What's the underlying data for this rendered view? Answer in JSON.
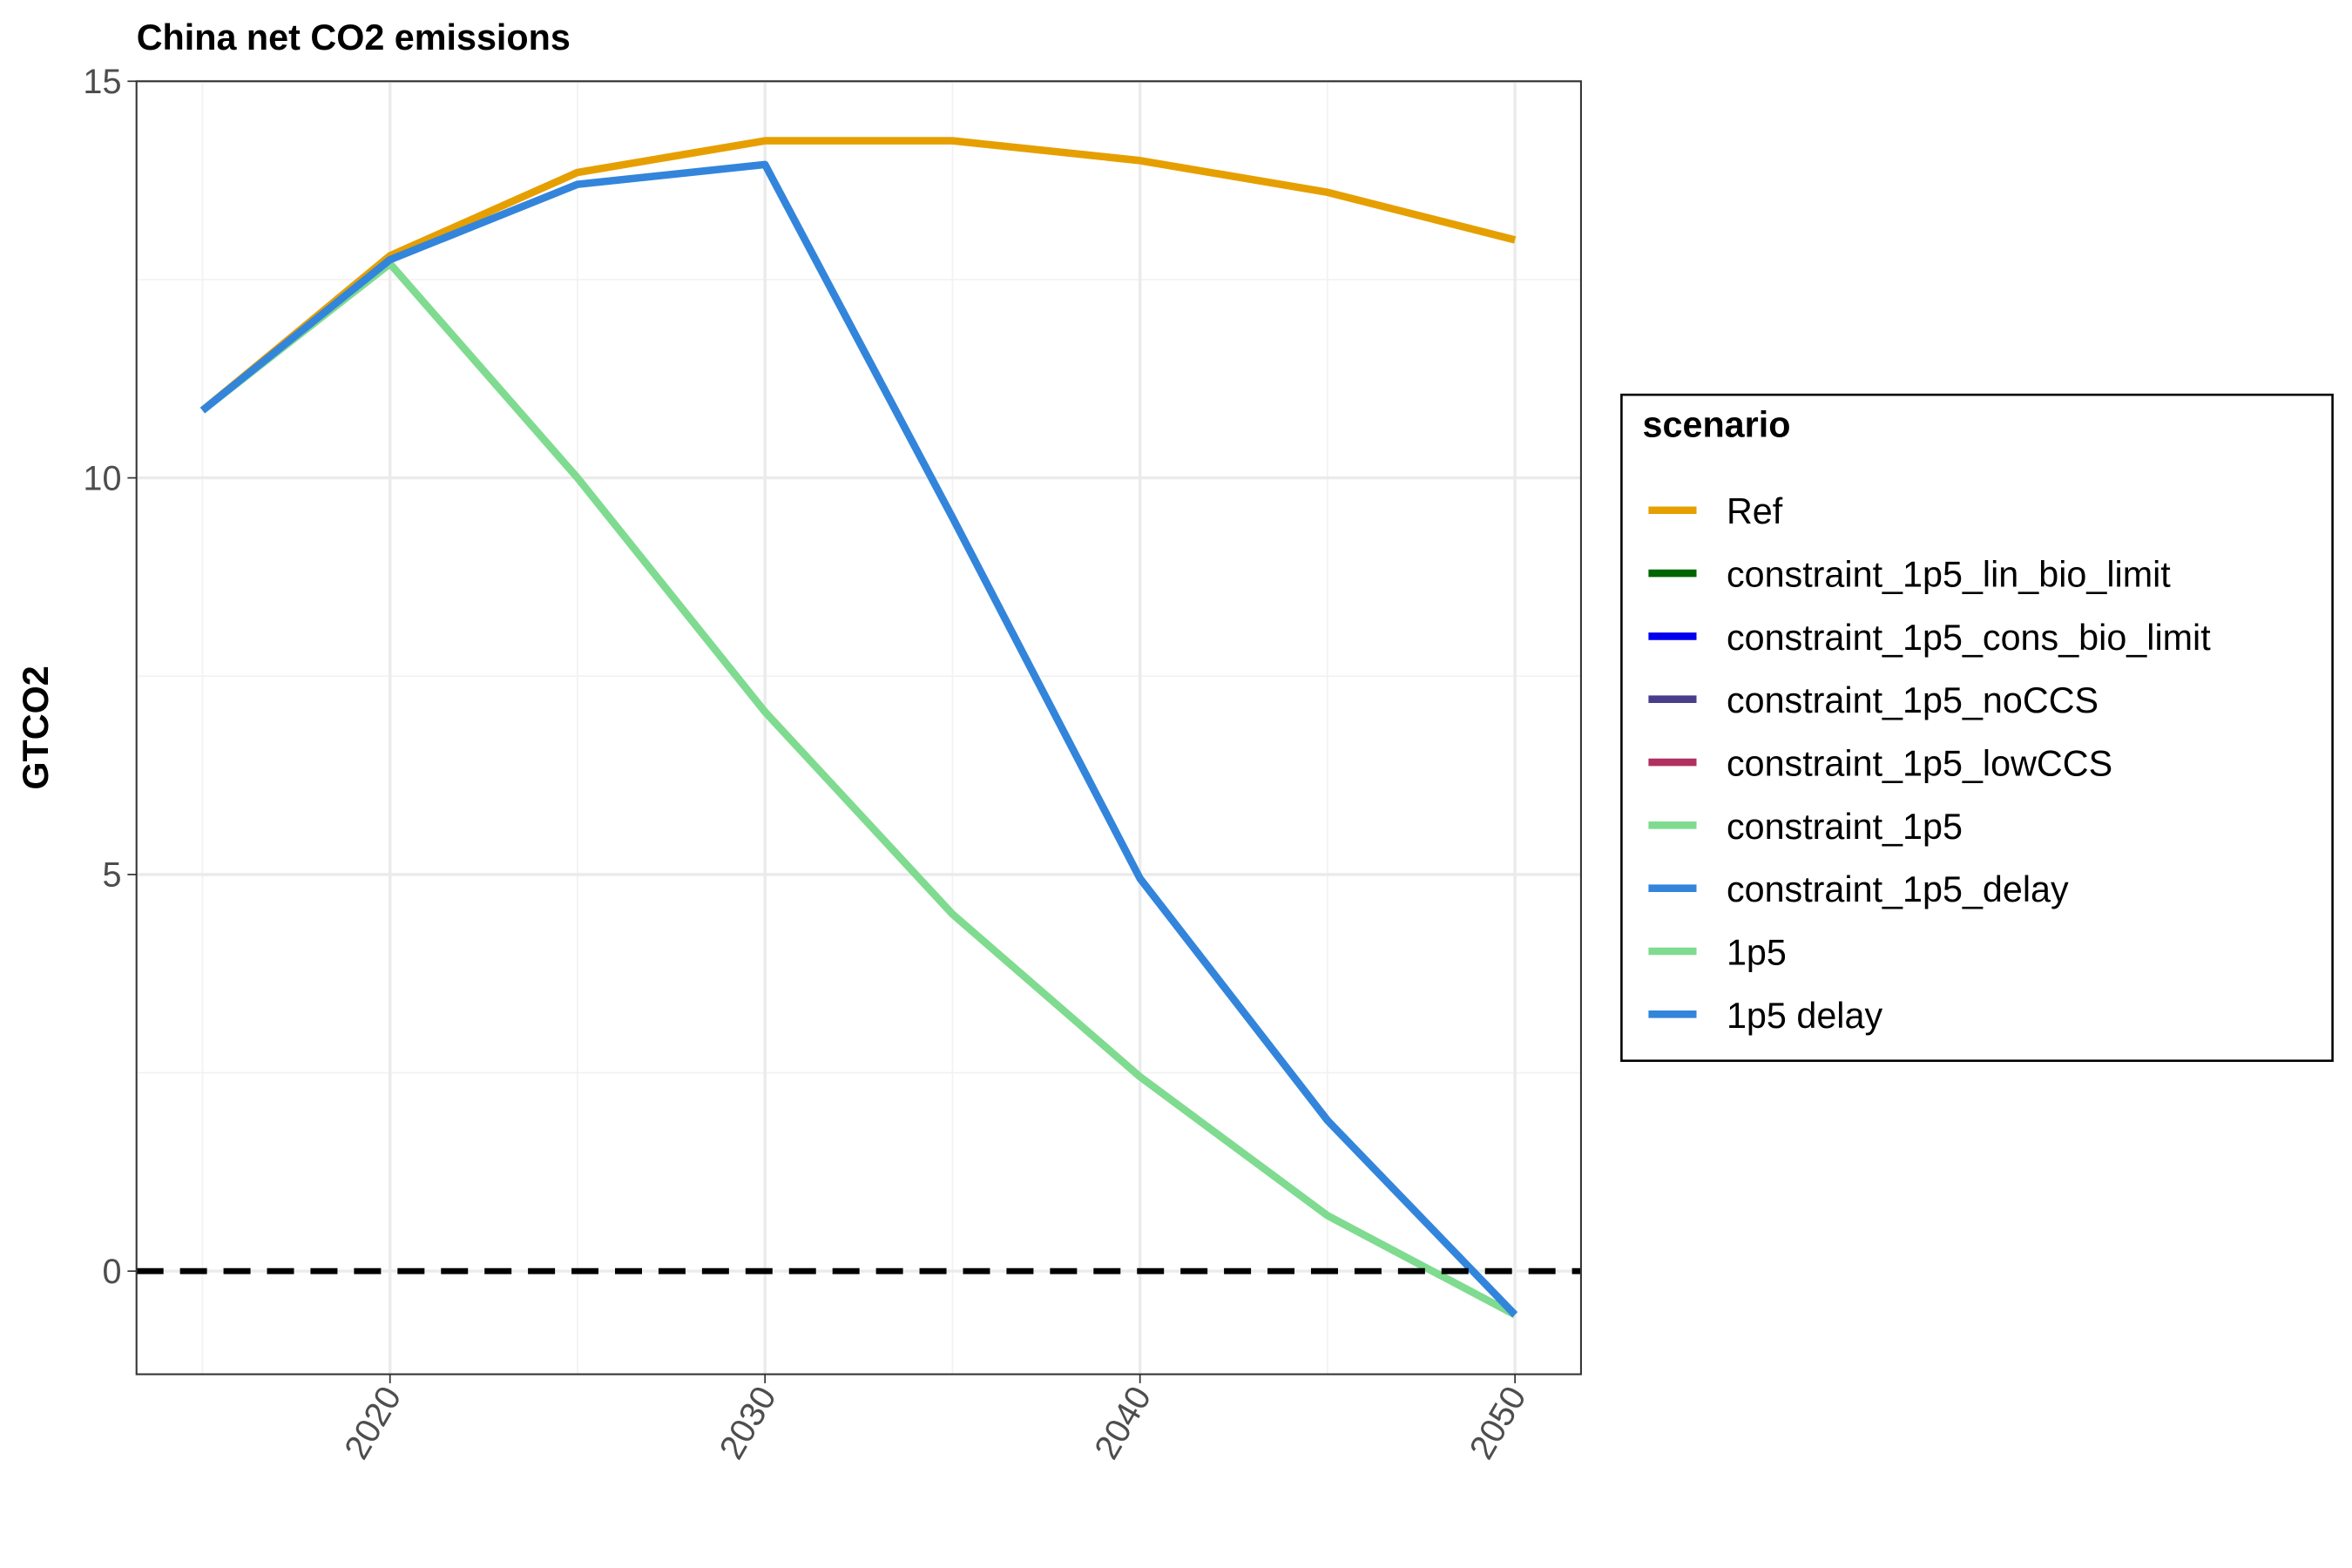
{
  "chart_data": {
    "type": "line",
    "title": "China net CO2 emissions",
    "y_label": "GTCO2",
    "legend_title": "scenario",
    "legend_position": "right",
    "x": [
      2015,
      2020,
      2025,
      2030,
      2035,
      2040,
      2045,
      2050
    ],
    "xlim": [
      2013.24,
      2051.76
    ],
    "xticks": [
      2020,
      2030,
      2040,
      2050
    ],
    "xminor": [
      2015,
      2025,
      2035,
      2045
    ],
    "ylim": [
      -1.3,
      15
    ],
    "yticks": [
      0,
      5,
      10,
      15
    ],
    "yminor": [
      2.5,
      7.5,
      12.5
    ],
    "grid": true,
    "hline": 0,
    "series": [
      {
        "name": "Ref",
        "color": "#E69F00",
        "values": [
          10.85,
          12.8,
          13.85,
          14.25,
          14.25,
          14.0,
          13.6,
          13.0
        ]
      },
      {
        "name": "constraint_1p5_lin_bio_limit",
        "color": "#006400",
        "values": [
          null,
          null,
          null,
          null,
          null,
          null,
          null,
          null
        ]
      },
      {
        "name": "constraint_1p5_cons_bio_limit",
        "color": "#0000EE",
        "values": [
          null,
          null,
          null,
          null,
          null,
          null,
          null,
          null
        ]
      },
      {
        "name": "constraint_1p5_noCCS",
        "color": "#483D8B",
        "values": [
          null,
          null,
          null,
          null,
          null,
          null,
          null,
          null
        ]
      },
      {
        "name": "constraint_1p5_lowCCS",
        "color": "#B03060",
        "values": [
          null,
          null,
          null,
          null,
          null,
          null,
          null,
          null
        ]
      },
      {
        "name": "constraint_1p5",
        "color": "#7FDB8F",
        "values": [
          null,
          null,
          null,
          null,
          null,
          null,
          null,
          null
        ]
      },
      {
        "name": "constraint_1p5_delay",
        "color": "#3385DB",
        "values": [
          null,
          null,
          null,
          null,
          null,
          null,
          null,
          null
        ]
      },
      {
        "name": "1p5",
        "color": "#7FDB8F",
        "values": [
          10.85,
          12.7,
          10.0,
          7.05,
          4.5,
          2.45,
          0.7,
          -0.55
        ]
      },
      {
        "name": "1p5 delay",
        "color": "#3385DB",
        "values": [
          10.85,
          12.75,
          13.7,
          13.95,
          9.5,
          4.95,
          1.9,
          -0.55
        ]
      }
    ]
  }
}
